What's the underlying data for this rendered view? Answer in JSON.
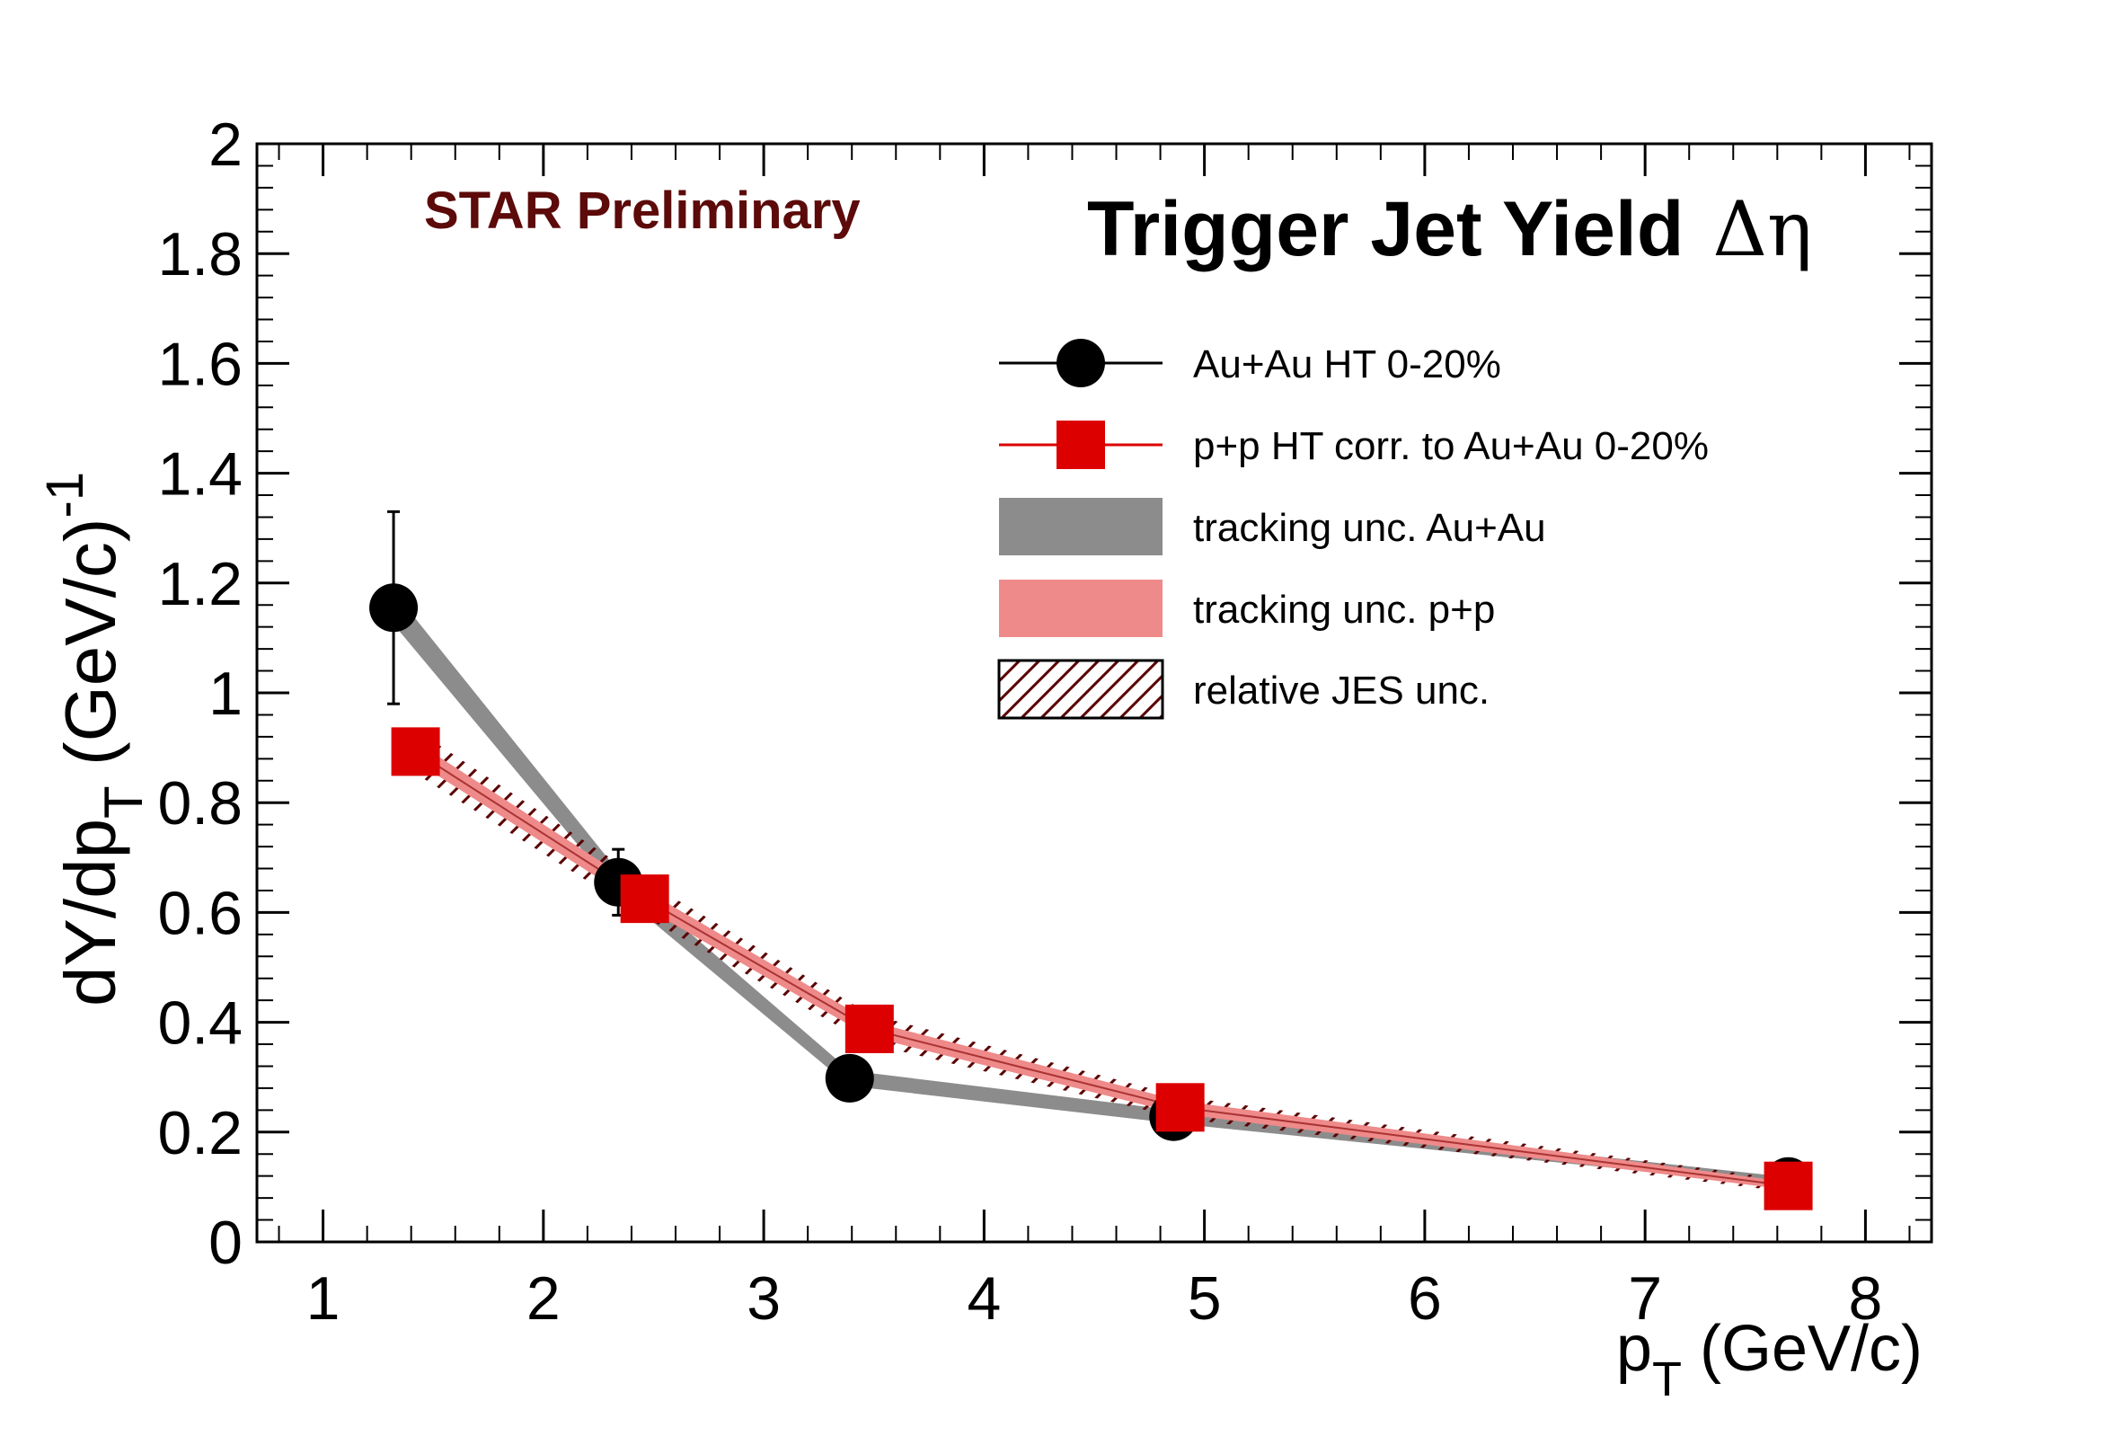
{
  "chart_data": {
    "type": "scatter",
    "title": "Trigger Jet Yield",
    "title_symbol": "Δη",
    "annotation": "STAR Preliminary",
    "xlabel": {
      "main": "p",
      "sub": "T",
      "unit": " (GeV/c)"
    },
    "ylabel": {
      "main": "dY/dp",
      "sub": "T",
      "unit": "  (GeV/c)",
      "sup": "-1"
    },
    "xlim": [
      0.7,
      8.3
    ],
    "ylim": [
      0,
      2
    ],
    "x_ticks": [
      {
        "value": 1,
        "label": "1"
      },
      {
        "value": 2,
        "label": "2"
      },
      {
        "value": 3,
        "label": "3"
      },
      {
        "value": 4,
        "label": "4"
      },
      {
        "value": 5,
        "label": "5"
      },
      {
        "value": 6,
        "label": "6"
      },
      {
        "value": 7,
        "label": "7"
      },
      {
        "value": 8,
        "label": "8"
      }
    ],
    "y_ticks": [
      {
        "value": 0,
        "label": "0"
      },
      {
        "value": 0.2,
        "label": "0.2"
      },
      {
        "value": 0.4,
        "label": "0.4"
      },
      {
        "value": 0.6,
        "label": "0.6"
      },
      {
        "value": 0.8,
        "label": "0.8"
      },
      {
        "value": 1.0,
        "label": "1"
      },
      {
        "value": 1.2,
        "label": "1.2"
      },
      {
        "value": 1.4,
        "label": "1.4"
      },
      {
        "value": 1.6,
        "label": "1.6"
      },
      {
        "value": 1.8,
        "label": "1.8"
      },
      {
        "value": 2.0,
        "label": "2"
      }
    ],
    "series": [
      {
        "name": "Au+Au HT 0-20%",
        "marker": "circle",
        "color": "#000000",
        "x": [
          1.32,
          2.34,
          3.39,
          4.86,
          7.65
        ],
        "y": [
          1.155,
          0.655,
          0.298,
          0.228,
          0.11
        ],
        "yerr": [
          0.175,
          0.06,
          0.012,
          0.01,
          0.006
        ],
        "band_name": "tracking unc. Au+Au",
        "band_color": "#8c8c8c",
        "band_halfwidth": [
          0.03,
          0.02,
          0.014,
          0.012,
          0.008
        ]
      },
      {
        "name": "p+p HT corr. to Au+Au 0-20%",
        "marker": "square",
        "color": "#dd0000",
        "x": [
          1.42,
          2.46,
          3.48,
          4.89,
          7.65
        ],
        "y": [
          0.893,
          0.625,
          0.388,
          0.245,
          0.102
        ],
        "band_name": "tracking unc. p+p",
        "band_color": "#ef8a8a",
        "band_halfwidth": [
          0.018,
          0.016,
          0.014,
          0.012,
          0.007
        ],
        "jes_name": "relative JES unc.",
        "jes_color": "#5a0000",
        "jes_halfwidth": [
          0.04,
          0.033,
          0.027,
          0.02,
          0.011
        ]
      }
    ],
    "legend": {
      "position": "top-right",
      "entries": [
        {
          "label": "Au+Au HT 0-20%",
          "kind": "circle-line",
          "color": "#000000"
        },
        {
          "label": "p+p HT corr. to Au+Au 0-20%",
          "kind": "square-line",
          "color": "#dd0000"
        },
        {
          "label": "tracking unc. Au+Au",
          "kind": "fill",
          "color": "#8c8c8c"
        },
        {
          "label": "tracking unc. p+p",
          "kind": "fill",
          "color": "#ef8a8a"
        },
        {
          "label": "relative JES unc.",
          "kind": "hatch",
          "color": "#5a0000"
        }
      ]
    },
    "annotation_color": "#5c0a0a"
  }
}
